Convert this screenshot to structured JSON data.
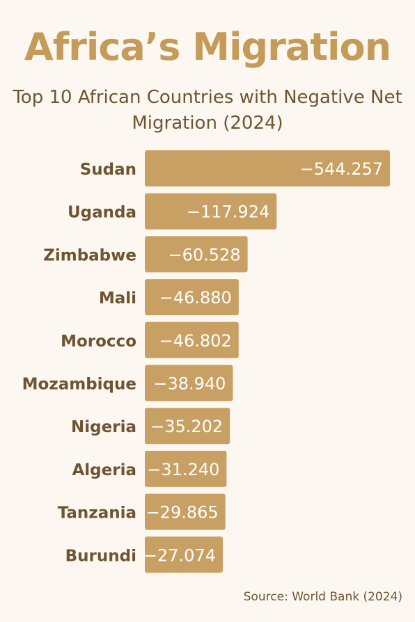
{
  "chart_data": {
    "type": "bar",
    "orientation": "horizontal",
    "title": "Africa’s Migration",
    "subtitle": "Top 10 African Countries with Negative Net Migration (2024)",
    "categories": [
      "Sudan",
      "Uganda",
      "Zimbabwe",
      "Mali",
      "Morocco",
      "Mozambique",
      "Nigeria",
      "Algeria",
      "Tanzania",
      "Burundi"
    ],
    "values": [
      -544257,
      -117924,
      -60528,
      -46880,
      -46802,
      -38940,
      -35202,
      -31240,
      -29865,
      -27074
    ],
    "labels": [
      "−544.257",
      "−117.924",
      "−60.528",
      "−46.880",
      "−46.802",
      "−38.940",
      "−35.202",
      "−31.240",
      "−29.865",
      "−27.074"
    ],
    "bar_color": "#c9a063",
    "label_color": "#ffffff",
    "category_color": "#6e5532",
    "grid": false,
    "legend": "none"
  },
  "source": "Source: World Bank (2024)",
  "colors": {
    "background": "#fcf8f1",
    "title": "#c59b59",
    "text": "#6e5532"
  }
}
